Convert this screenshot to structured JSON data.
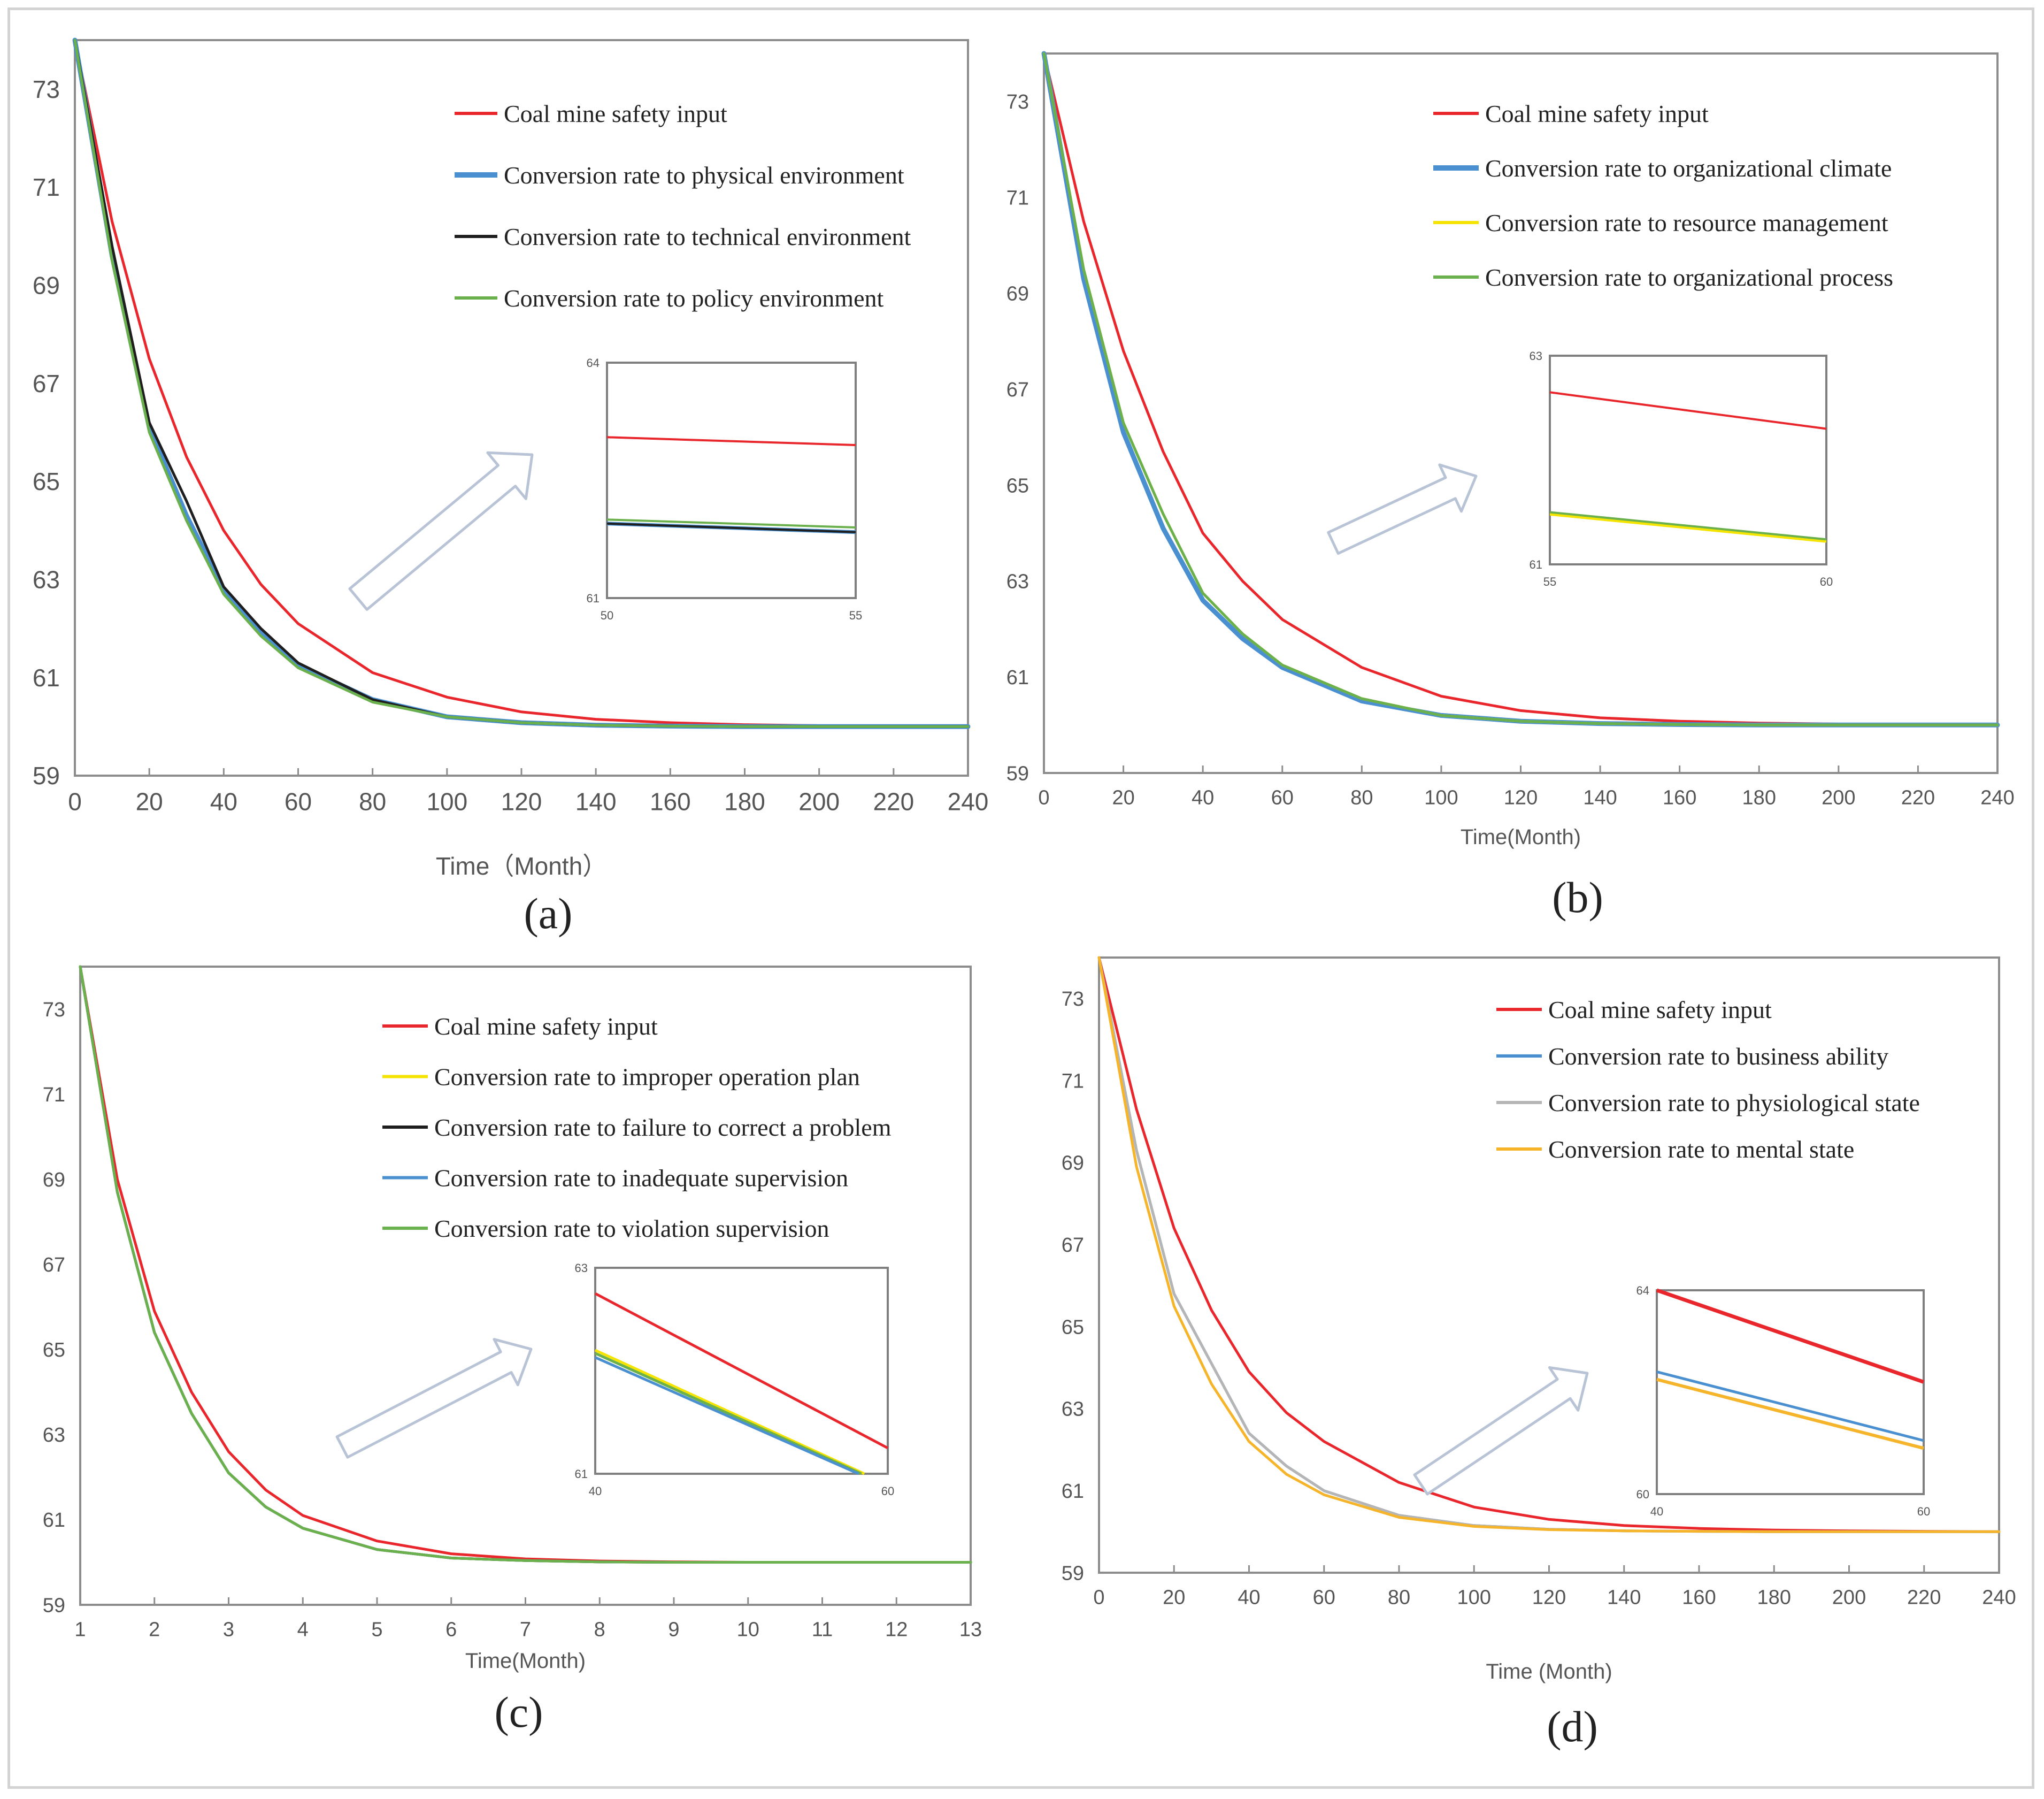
{
  "colors": {
    "red": "#e8262b",
    "blue": "#4a90d0",
    "black": "#1e1e1e",
    "green": "#6ab04c",
    "yellow": "#f5e300",
    "gray": "#b5b5b5",
    "orange": "#f5b42a",
    "axis": "#8c8c8c",
    "tick_text": "#555555"
  },
  "chart_data": [
    {
      "type": "line",
      "caption": "(a)",
      "xlabel": "Time（Month）",
      "ylabel": "",
      "xlim": [
        0,
        240
      ],
      "ylim": [
        59,
        74
      ],
      "xticks": [
        0,
        20,
        40,
        60,
        80,
        100,
        120,
        140,
        160,
        180,
        200,
        220,
        240
      ],
      "yticks": [
        59,
        61,
        63,
        65,
        67,
        69,
        71,
        73
      ],
      "grid": false,
      "legend_position": "top-right",
      "series": [
        {
          "name": "Coal mine safety input",
          "color": "red",
          "width": 5,
          "x": [
            0,
            10,
            20,
            30,
            40,
            50,
            60,
            80,
            100,
            120,
            140,
            160,
            180,
            200,
            220,
            240
          ],
          "y": [
            74.0,
            70.3,
            67.5,
            65.5,
            64.0,
            62.9,
            62.1,
            61.1,
            60.6,
            60.3,
            60.15,
            60.08,
            60.04,
            60.02,
            60.01,
            60.0
          ]
        },
        {
          "name": "Conversion rate to physical environment",
          "color": "blue",
          "width": 9,
          "x": [
            0,
            10,
            20,
            30,
            40,
            50,
            60,
            80,
            100,
            120,
            140,
            160,
            180,
            200,
            220,
            240
          ],
          "y": [
            74.0,
            69.6,
            66.1,
            64.3,
            62.8,
            61.9,
            61.25,
            60.55,
            60.2,
            60.08,
            60.03,
            60.01,
            60.0,
            60.0,
            60.0,
            60.0
          ]
        },
        {
          "name": "Conversion rate to technical environment",
          "color": "black",
          "width": 5,
          "x": [
            0,
            10,
            20,
            30,
            40,
            50,
            60,
            80,
            100,
            120,
            140,
            160,
            180,
            200,
            220,
            240
          ],
          "y": [
            74.0,
            69.8,
            66.2,
            64.6,
            62.85,
            62.0,
            61.3,
            60.55,
            60.2,
            60.08,
            60.03,
            60.01,
            60.0,
            60.0,
            60.0,
            60.0
          ]
        },
        {
          "name": "Conversion rate to policy environment",
          "color": "green",
          "width": 5,
          "x": [
            0,
            10,
            20,
            30,
            40,
            50,
            60,
            80,
            100,
            120,
            140,
            160,
            180,
            200,
            220,
            240
          ],
          "y": [
            74.0,
            69.5,
            66.0,
            64.2,
            62.7,
            61.85,
            61.2,
            60.5,
            60.2,
            60.08,
            60.03,
            60.01,
            60.0,
            60.0,
            60.0,
            60.0
          ]
        }
      ],
      "inset": {
        "xlim": [
          50,
          55
        ],
        "ylim": [
          61,
          64
        ],
        "xticks": [
          50,
          55
        ],
        "yticks": [
          61,
          64
        ],
        "series": [
          {
            "color": "red",
            "width": 4,
            "x": [
              50,
              55
            ],
            "y": [
              63.05,
              62.95
            ]
          },
          {
            "color": "green",
            "width": 4,
            "x": [
              50,
              55
            ],
            "y": [
              62.0,
              61.9
            ]
          },
          {
            "color": "blue",
            "width": 7,
            "x": [
              50,
              55
            ],
            "y": [
              61.95,
              61.84
            ]
          },
          {
            "color": "black",
            "width": 4,
            "x": [
              50,
              55
            ],
            "y": [
              61.95,
              61.84
            ]
          }
        ]
      }
    },
    {
      "type": "line",
      "caption": "(b)",
      "xlabel": "Time(Month)",
      "ylabel": "",
      "xlim": [
        0,
        240
      ],
      "ylim": [
        59,
        74
      ],
      "xticks": [
        0,
        20,
        40,
        60,
        80,
        100,
        120,
        140,
        160,
        180,
        200,
        220,
        240
      ],
      "yticks": [
        59,
        61,
        63,
        65,
        67,
        69,
        71,
        73
      ],
      "grid": false,
      "legend_position": "top-right",
      "series": [
        {
          "name": "Coal mine safety input",
          "color": "red",
          "width": 5,
          "x": [
            0,
            10,
            20,
            30,
            40,
            50,
            60,
            80,
            100,
            120,
            140,
            160,
            180,
            200,
            220,
            240
          ],
          "y": [
            74.0,
            70.5,
            67.8,
            65.7,
            64.0,
            63.0,
            62.2,
            61.2,
            60.6,
            60.3,
            60.15,
            60.08,
            60.04,
            60.02,
            60.01,
            60.0
          ]
        },
        {
          "name": "Conversion rate to organizational climate",
          "color": "blue",
          "width": 9,
          "x": [
            0,
            10,
            20,
            30,
            40,
            50,
            60,
            80,
            100,
            120,
            140,
            160,
            180,
            200,
            220,
            240
          ],
          "y": [
            74.0,
            69.3,
            66.1,
            64.1,
            62.6,
            61.8,
            61.2,
            60.5,
            60.2,
            60.08,
            60.03,
            60.01,
            60.0,
            60.0,
            60.0,
            60.0
          ]
        },
        {
          "name": "Conversion rate to resource management",
          "color": "yellow",
          "width": 5,
          "x": [
            0,
            10,
            20,
            30,
            40,
            50,
            60,
            80,
            100,
            120,
            140,
            160,
            180,
            200,
            220,
            240
          ],
          "y": [
            74.0,
            69.5,
            66.3,
            64.4,
            62.75,
            61.9,
            61.25,
            60.55,
            60.2,
            60.08,
            60.03,
            60.01,
            60.0,
            60.0,
            60.0,
            60.0
          ]
        },
        {
          "name": "Conversion rate to organizational process",
          "color": "green",
          "width": 5,
          "x": [
            0,
            10,
            20,
            30,
            40,
            50,
            60,
            80,
            100,
            120,
            140,
            160,
            180,
            200,
            220,
            240
          ],
          "y": [
            74.0,
            69.5,
            66.3,
            64.4,
            62.75,
            61.9,
            61.25,
            60.55,
            60.2,
            60.08,
            60.03,
            60.01,
            60.0,
            60.0,
            60.0,
            60.0
          ]
        }
      ],
      "inset": {
        "xlim": [
          55,
          60
        ],
        "ylim": [
          61,
          63
        ],
        "xticks": [
          55,
          60
        ],
        "yticks": [
          61,
          63
        ],
        "series": [
          {
            "color": "red",
            "width": 4,
            "x": [
              55,
              60
            ],
            "y": [
              62.65,
              62.3
            ]
          },
          {
            "color": "yellow",
            "width": 5,
            "x": [
              55,
              60
            ],
            "y": [
              61.48,
              61.22
            ]
          },
          {
            "color": "green",
            "width": 4,
            "x": [
              55,
              60
            ],
            "y": [
              61.5,
              61.24
            ]
          }
        ]
      }
    },
    {
      "type": "line",
      "caption": "(c)",
      "xlabel": "Time(Month)",
      "ylabel": "",
      "xlim": [
        1,
        13
      ],
      "ylim": [
        59,
        74
      ],
      "xticks": [
        1,
        2,
        3,
        4,
        5,
        6,
        7,
        8,
        9,
        10,
        11,
        12,
        13
      ],
      "yticks": [
        59,
        61,
        63,
        65,
        67,
        69,
        71,
        73
      ],
      "grid": false,
      "legend_position": "top-right",
      "series": [
        {
          "name": "Coal mine safety input",
          "color": "red",
          "width": 5,
          "x": [
            1,
            1.5,
            2,
            2.5,
            3,
            3.5,
            4,
            5,
            6,
            7,
            8,
            9,
            10,
            11,
            12,
            13
          ],
          "y": [
            74.0,
            69.0,
            65.9,
            64.0,
            62.6,
            61.7,
            61.1,
            60.5,
            60.2,
            60.08,
            60.03,
            60.01,
            60.0,
            60.0,
            60.0,
            60.0
          ]
        },
        {
          "name": "Conversion rate to improper operation plan",
          "color": "yellow",
          "width": 5,
          "x": [
            1,
            1.5,
            2,
            2.5,
            3,
            3.5,
            4,
            5,
            6,
            7,
            8,
            9,
            10,
            11,
            12,
            13
          ],
          "y": [
            74.0,
            68.7,
            65.4,
            63.5,
            62.1,
            61.3,
            60.8,
            60.3,
            60.1,
            60.04,
            60.01,
            60.0,
            60.0,
            60.0,
            60.0,
            60.0
          ]
        },
        {
          "name": "Conversion rate to failure to correct a problem",
          "color": "black",
          "width": 5,
          "x": [
            1,
            1.5,
            2,
            2.5,
            3,
            3.5,
            4,
            5,
            6,
            7,
            8,
            9,
            10,
            11,
            12,
            13
          ],
          "y": [
            74.0,
            68.7,
            65.4,
            63.5,
            62.1,
            61.3,
            60.8,
            60.3,
            60.1,
            60.04,
            60.01,
            60.0,
            60.0,
            60.0,
            60.0,
            60.0
          ]
        },
        {
          "name": "Conversion rate to inadequate supervision",
          "color": "blue",
          "width": 5,
          "x": [
            1,
            1.5,
            2,
            2.5,
            3,
            3.5,
            4,
            5,
            6,
            7,
            8,
            9,
            10,
            11,
            12,
            13
          ],
          "y": [
            74.0,
            68.7,
            65.4,
            63.5,
            62.1,
            61.3,
            60.8,
            60.3,
            60.1,
            60.04,
            60.01,
            60.0,
            60.0,
            60.0,
            60.0,
            60.0
          ]
        },
        {
          "name": "Conversion rate to violation supervision",
          "color": "green",
          "width": 5,
          "x": [
            1,
            1.5,
            2,
            2.5,
            3,
            3.5,
            4,
            5,
            6,
            7,
            8,
            9,
            10,
            11,
            12,
            13
          ],
          "y": [
            74.0,
            68.7,
            65.4,
            63.5,
            62.1,
            61.3,
            60.8,
            60.3,
            60.1,
            60.04,
            60.01,
            60.0,
            60.0,
            60.0,
            60.0,
            60.0
          ]
        }
      ],
      "inset": {
        "xlim": [
          40,
          60
        ],
        "ylim": [
          61,
          63
        ],
        "xticks": [
          40,
          60
        ],
        "yticks": [
          61,
          63
        ],
        "series": [
          {
            "color": "red",
            "width": 5,
            "x": [
              40,
              60
            ],
            "y": [
              62.75,
              61.25
            ]
          },
          {
            "color": "yellow",
            "width": 5,
            "x": [
              40,
              58.4
            ],
            "y": [
              62.2,
              61.0
            ]
          },
          {
            "color": "green",
            "width": 5,
            "x": [
              40,
              58.2
            ],
            "y": [
              62.17,
              61.0
            ]
          },
          {
            "color": "blue",
            "width": 5,
            "x": [
              40,
              58.0
            ],
            "y": [
              62.13,
              61.0
            ]
          }
        ]
      }
    },
    {
      "type": "line",
      "caption": "(d)",
      "xlabel": "Time (Month)",
      "ylabel": "",
      "xlim": [
        0,
        240
      ],
      "ylim": [
        59,
        74
      ],
      "xticks": [
        0,
        20,
        40,
        60,
        80,
        100,
        120,
        140,
        160,
        180,
        200,
        220,
        240
      ],
      "yticks": [
        59,
        61,
        63,
        65,
        67,
        69,
        71,
        73
      ],
      "grid": false,
      "legend_position": "top-right",
      "series": [
        {
          "name": "Coal mine safety input",
          "color": "red",
          "width": 5,
          "x": [
            0,
            10,
            20,
            30,
            40,
            50,
            60,
            80,
            100,
            120,
            140,
            160,
            180,
            200,
            220,
            240
          ],
          "y": [
            74.0,
            70.3,
            67.4,
            65.4,
            63.9,
            62.9,
            62.2,
            61.2,
            60.6,
            60.3,
            60.15,
            60.08,
            60.04,
            60.02,
            60.01,
            60.0
          ]
        },
        {
          "name": "Conversion rate to business ability",
          "color": "blue",
          "width": 5,
          "x": [
            0,
            10,
            20,
            30,
            40,
            50,
            60,
            80,
            100,
            120,
            140,
            160,
            180,
            200,
            220,
            240
          ],
          "y": [
            74.0,
            69.3,
            65.8,
            64.1,
            62.4,
            61.6,
            61.0,
            60.4,
            60.15,
            60.06,
            60.02,
            60.01,
            60.0,
            60.0,
            60.0,
            60.0
          ]
        },
        {
          "name": "Conversion rate to physiological state",
          "color": "gray",
          "width": 5,
          "x": [
            0,
            10,
            20,
            30,
            40,
            50,
            60,
            80,
            100,
            120,
            140,
            160,
            180,
            200,
            220,
            240
          ],
          "y": [
            74.0,
            69.3,
            65.8,
            64.1,
            62.4,
            61.6,
            61.0,
            60.4,
            60.15,
            60.06,
            60.02,
            60.01,
            60.0,
            60.0,
            60.0,
            60.0
          ]
        },
        {
          "name": "Conversion rate to mental state",
          "color": "orange",
          "width": 5,
          "x": [
            0,
            10,
            20,
            30,
            40,
            50,
            60,
            80,
            100,
            120,
            140,
            160,
            180,
            200,
            220,
            240
          ],
          "y": [
            74.0,
            68.9,
            65.5,
            63.6,
            62.2,
            61.4,
            60.9,
            60.35,
            60.13,
            60.05,
            60.02,
            60.01,
            60.0,
            60.0,
            60.0,
            60.0
          ]
        }
      ],
      "inset": {
        "xlim": [
          40,
          60
        ],
        "ylim": [
          60,
          64
        ],
        "xticks": [
          40,
          60
        ],
        "yticks": [
          60,
          64
        ],
        "series": [
          {
            "color": "red",
            "width": 7,
            "x": [
              40,
              60
            ],
            "y": [
              64.0,
              62.2
            ]
          },
          {
            "color": "orange",
            "width": 6,
            "x": [
              40,
              60
            ],
            "y": [
              62.25,
              60.9
            ]
          },
          {
            "color": "blue",
            "width": 5,
            "x": [
              40,
              60
            ],
            "y": [
              62.4,
              61.05
            ]
          }
        ]
      }
    }
  ]
}
